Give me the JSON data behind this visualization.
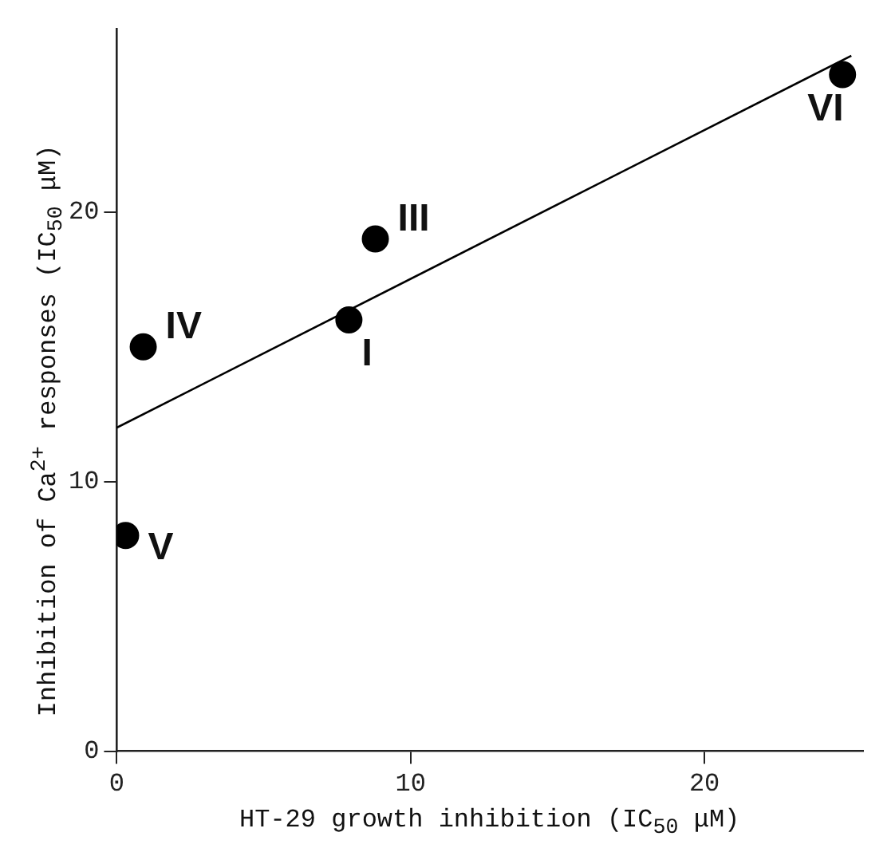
{
  "chart_data": {
    "type": "scatter",
    "xlabel": "HT-29 growth inhibition (IC$_{50}$ μM)",
    "ylabel": "Inhibition of Ca$^{2+}$ responses (IC$_{50}$ μM)",
    "xlim": [
      0,
      25.4
    ],
    "ylim": [
      0,
      26.8
    ],
    "xticks": [
      0,
      10,
      20
    ],
    "yticks": [
      0,
      10,
      20
    ],
    "grid": false,
    "legend": false,
    "series": [
      {
        "marker": "circle",
        "color": "#000000",
        "x": [
          0.3,
          0.9,
          7.9,
          8.8,
          24.7
        ],
        "values": [
          8.0,
          15.0,
          16.0,
          19.0,
          25.1
        ]
      },
      {
        "type": "line",
        "marker": "none",
        "color": "#000000",
        "x": [
          0,
          25
        ],
        "values": [
          12,
          25.8
        ]
      }
    ],
    "annotations": [
      {
        "text": "V",
        "x": 0.3,
        "y": 8.0
      },
      {
        "text": "IV",
        "x": 0.9,
        "y": 15.0
      },
      {
        "text": "I",
        "x": 7.9,
        "y": 16.0
      },
      {
        "text": "III",
        "x": 8.8,
        "y": 19.0
      },
      {
        "text": "VI",
        "x": 24.7,
        "y": 25.1
      }
    ]
  }
}
